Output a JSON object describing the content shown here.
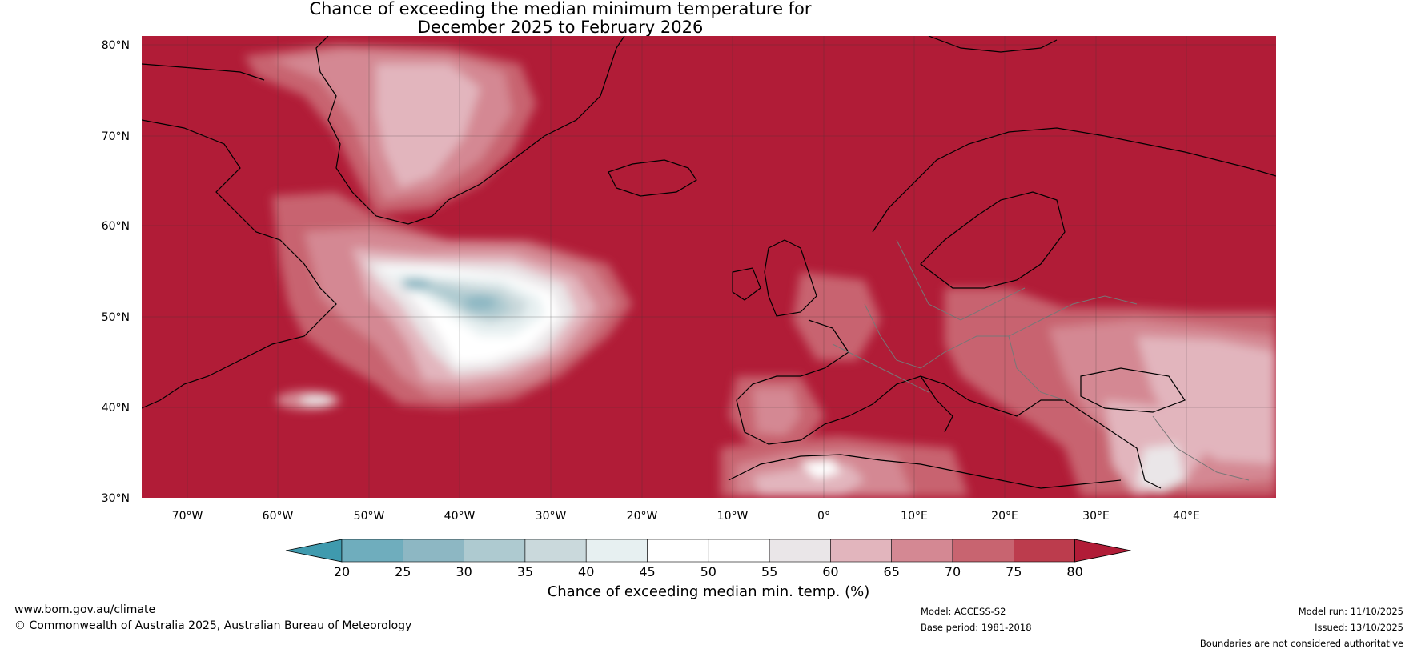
{
  "title": {
    "line1": "Chance of exceeding the median minimum temperature for",
    "line2": "December 2025 to February 2026"
  },
  "map": {
    "lat_labels": [
      "80°N",
      "70°N",
      "60°N",
      "50°N",
      "40°N",
      "30°N"
    ],
    "lon_labels": [
      "70°W",
      "60°W",
      "50°W",
      "40°W",
      "30°W",
      "20°W",
      "10°W",
      "0°",
      "10°E",
      "20°E",
      "30°E",
      "40°E"
    ],
    "background_color": "#B11C37"
  },
  "colorbar": {
    "ticks": [
      "20",
      "25",
      "30",
      "35",
      "40",
      "45",
      "50",
      "55",
      "60",
      "65",
      "70",
      "75",
      "80"
    ],
    "colors": [
      "#4E9DAF",
      "#6FADBD",
      "#8DB7C3",
      "#AECAD0",
      "#CAD9DC",
      "#E7F0F1",
      "#FFFFFF",
      "#FFFFFF",
      "#EAE6E8",
      "#E2B5BD",
      "#D48893",
      "#C86470",
      "#BC3C4D"
    ],
    "under_color": "#3F9AAE",
    "over_color": "#B11C37",
    "label": "Chance of exceeding median min. temp. (%)"
  },
  "footer": {
    "website": "www.bom.gov.au/climate",
    "copyright": "© Commonwealth of Australia 2025, Australian Bureau of Meteorology",
    "model": "Model: ACCESS-S2",
    "base_period": "Base period: 1981-2018",
    "model_run": "Model run: 11/10/2025",
    "issued": "Issued: 13/10/2025",
    "disclaimer": "Boundaries are not considered authoritative"
  }
}
